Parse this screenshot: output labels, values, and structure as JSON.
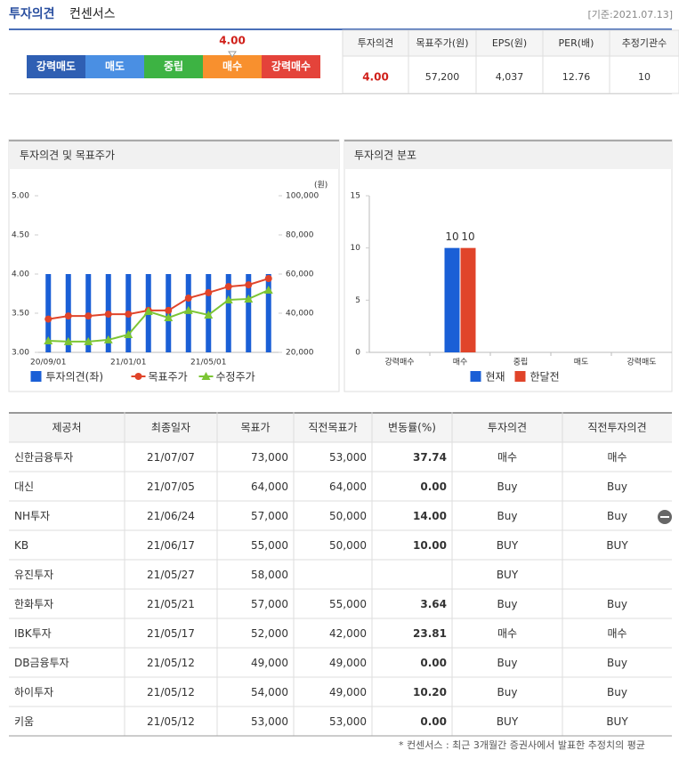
{
  "header": {
    "title": "투자의견",
    "subtitle": "컨센서스",
    "date": "[기준:2021.07.13]"
  },
  "scale": {
    "labels": [
      "강력매도",
      "매도",
      "중립",
      "매수",
      "강력매수"
    ],
    "colors": [
      "#2f5fb3",
      "#4a8fe3",
      "#3db343",
      "#f8902e",
      "#e4433a"
    ],
    "value": 4.0,
    "value_label": "4.00"
  },
  "summary": {
    "headers": [
      "투자의견",
      "목표주가(원)",
      "EPS(원)",
      "PER(배)",
      "추정기관수"
    ],
    "values": [
      "4.00",
      "57,200",
      "4,037",
      "12.76",
      "10"
    ]
  },
  "chart_data": [
    {
      "type": "combo",
      "title": "투자의견 및 목표주가",
      "categories": [
        "20/09/01",
        null,
        null,
        null,
        "21/01/01",
        null,
        null,
        null,
        "21/05/01",
        null,
        null,
        null
      ],
      "series": [
        {
          "name": "투자의견(좌)",
          "color": "#1a5fd6",
          "values": [
            4,
            4,
            4,
            4,
            4,
            4,
            4,
            4,
            4,
            4,
            4,
            4
          ]
        },
        {
          "name": "목표주가",
          "color": "#e0442a",
          "axis": "y2",
          "values": [
            37000,
            38600,
            38600,
            39500,
            39500,
            41400,
            41400,
            47700,
            50500,
            53600,
            54500,
            57700
          ]
        },
        {
          "name": "수정주가",
          "color": "#7cc534",
          "axis": "y2",
          "values": [
            25900,
            25500,
            25500,
            26400,
            29100,
            40900,
            37700,
            41400,
            39100,
            46800,
            47300,
            51800
          ]
        }
      ],
      "ylim": [
        3,
        5
      ],
      "yticks": [
        {
          "value": 3,
          "label": "3.00"
        },
        {
          "value": 3.5,
          "label": "3.50"
        },
        {
          "value": 4,
          "label": "4.00"
        },
        {
          "value": 4.5,
          "label": "4.50"
        },
        {
          "value": 5,
          "label": "5.00"
        }
      ],
      "y2lim": [
        20000,
        100000
      ],
      "y2ticks": [
        {
          "value": 20000,
          "label": "20,000"
        },
        {
          "value": 40000,
          "label": "40,000"
        },
        {
          "value": 60000,
          "label": "60,000"
        },
        {
          "value": 80000,
          "label": "80,000"
        },
        {
          "value": 100000,
          "label": "100,000"
        }
      ],
      "y2_label": "(원)",
      "grid": false
    },
    {
      "type": "bar",
      "title": "투자의견 분포",
      "categories": [
        "강력매수",
        "매수",
        "중립",
        "매도",
        "강력매도"
      ],
      "series": [
        {
          "name": "현재",
          "color": "#1a5fd6",
          "values": [
            0,
            10,
            0,
            0,
            0
          ]
        },
        {
          "name": "한달전",
          "color": "#e0442a",
          "values": [
            0,
            10,
            0,
            0,
            0
          ]
        }
      ],
      "ylim": [
        0,
        15
      ],
      "yticks": [
        0,
        5,
        10,
        15
      ],
      "grid": false
    }
  ],
  "table": {
    "header": [
      "제공처",
      "최종일자",
      "목표가",
      "직전목표가",
      "변동률(%)",
      "투자의견",
      "직전투자의견"
    ],
    "rows": [
      [
        "신한금융투자",
        "21/07/07",
        "73,000",
        "53,000",
        "37.74",
        "매수",
        "매수"
      ],
      [
        "대신",
        "21/07/05",
        "64,000",
        "64,000",
        "0.00",
        "Buy",
        "Buy"
      ],
      [
        "NH투자",
        "21/06/24",
        "57,000",
        "50,000",
        "14.00",
        "Buy",
        "Buy"
      ],
      [
        "KB",
        "21/06/17",
        "55,000",
        "50,000",
        "10.00",
        "BUY",
        "BUY"
      ],
      [
        "유진투자",
        "21/05/27",
        "58,000",
        null,
        null,
        "BUY",
        null
      ],
      [
        "한화투자",
        "21/05/21",
        "57,000",
        "55,000",
        "3.64",
        "Buy",
        "Buy"
      ],
      [
        "IBK투자",
        "21/05/17",
        "52,000",
        "42,000",
        "23.81",
        "매수",
        "매수"
      ],
      [
        "DB금융투자",
        "21/05/12",
        "49,000",
        "49,000",
        "0.00",
        "Buy",
        "Buy"
      ],
      [
        "하이투자",
        "21/05/12",
        "54,000",
        "49,000",
        "10.20",
        "Buy",
        "Buy"
      ],
      [
        "키움",
        "21/05/12",
        "53,000",
        "53,000",
        "0.00",
        "BUY",
        "BUY"
      ]
    ],
    "footnote": "* 컨센서스 : 최근 3개월간 증권사에서 발표한 추정치의 평균"
  }
}
